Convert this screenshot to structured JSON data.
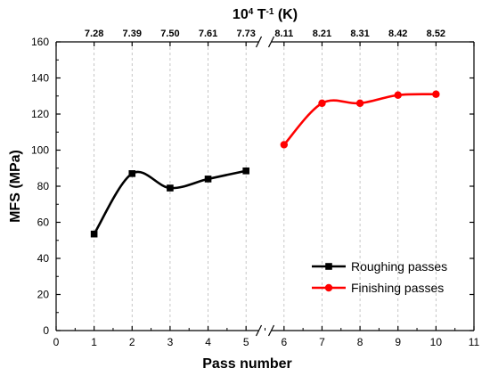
{
  "chart_data": {
    "type": "line",
    "title": "",
    "xlabel": "Pass number",
    "ylabel": "MFS (MPa)",
    "top_axis_label": {
      "base": "10",
      "sup1": "4",
      "mid": " T",
      "sup2": "-1",
      "unit": " (K)"
    },
    "xlim": [
      0,
      11
    ],
    "ylim": [
      0,
      160
    ],
    "x_ticks": [
      "0",
      "1",
      "2",
      "3",
      "4",
      "5",
      "6",
      "7",
      "8",
      "9",
      "10",
      "11"
    ],
    "y_ticks": [
      "0",
      "20",
      "40",
      "60",
      "80",
      "100",
      "120",
      "140",
      "160"
    ],
    "top_ticks": [
      {
        "x": 1,
        "label": "7.28"
      },
      {
        "x": 2,
        "label": "7.39"
      },
      {
        "x": 3,
        "label": "7.50"
      },
      {
        "x": 4,
        "label": "7.61"
      },
      {
        "x": 5,
        "label": "7.73"
      },
      {
        "x": 6,
        "label": "8.11"
      },
      {
        "x": 7,
        "label": "8.21"
      },
      {
        "x": 8,
        "label": "8.31"
      },
      {
        "x": 9,
        "label": "8.42"
      },
      {
        "x": 10,
        "label": "8.52"
      }
    ],
    "axis_break_x": 5.5,
    "grid": "dashed vertical at top-axis ticks",
    "legend_position": "bottom-right",
    "series": [
      {
        "name": "Roughing passes",
        "color": "#000000",
        "marker": "square",
        "x": [
          1,
          2,
          3,
          4,
          5
        ],
        "y": [
          53.5,
          87,
          79,
          84,
          88.5
        ]
      },
      {
        "name": "Finishing passes",
        "color": "#ff0000",
        "marker": "circle",
        "x": [
          6,
          7,
          8,
          9,
          10
        ],
        "y": [
          103,
          126,
          126,
          130.5,
          131
        ]
      }
    ]
  }
}
